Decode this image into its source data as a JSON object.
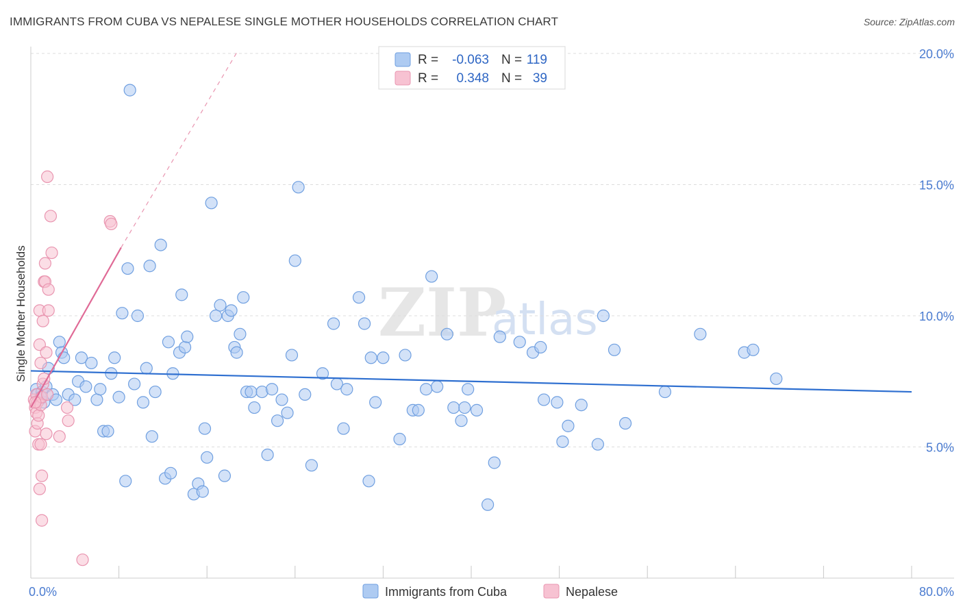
{
  "title": "IMMIGRANTS FROM CUBA VS NEPALESE SINGLE MOTHER HOUSEHOLDS CORRELATION CHART",
  "source": "Source: ZipAtlas.com",
  "watermark": {
    "zip": "ZIP",
    "atlas": "atlas"
  },
  "colors": {
    "cuba_fill": "#aecbf2",
    "cuba_stroke": "#6f9fe0",
    "cuba_line": "#2e6fd0",
    "nep_fill": "#f7c2d2",
    "nep_stroke": "#e995b0",
    "nep_line": "#e06a96",
    "grid": "#dddddd",
    "axis_text": "#4a7bd0"
  },
  "stats": {
    "r_label": "R =",
    "n_label": "N =",
    "cuba": {
      "r": "-0.063",
      "n": "119"
    },
    "nep": {
      "r": "0.348",
      "n": "39"
    }
  },
  "chart_data": {
    "type": "scatter",
    "title": "IMMIGRANTS FROM CUBA VS NEPALESE SINGLE MOTHER HOUSEHOLDS CORRELATION CHART",
    "xlabel": "",
    "ylabel": "Single Mother Households",
    "xlim": [
      0,
      80
    ],
    "ylim": [
      0,
      20
    ],
    "x_tick_labels": [
      "0.0%",
      "80.0%"
    ],
    "y_ticks": [
      5,
      10,
      15,
      20
    ],
    "y_tick_labels": [
      "5.0%",
      "10.0%",
      "15.0%",
      "20.0%"
    ],
    "legend": [
      "Immigrants from Cuba",
      "Nepalese"
    ],
    "series": [
      {
        "name": "Immigrants from Cuba",
        "trend": {
          "x0": 0,
          "y0": 7.9,
          "x1": 80,
          "y1": 7.1
        },
        "points": [
          [
            0.5,
            7.2
          ],
          [
            0.6,
            7.0
          ],
          [
            0.8,
            6.8
          ],
          [
            1.0,
            7.1
          ],
          [
            1.2,
            6.7
          ],
          [
            1.4,
            7.3
          ],
          [
            0.9,
            6.9
          ],
          [
            1.6,
            8.0
          ],
          [
            2.0,
            7.0
          ],
          [
            2.3,
            6.8
          ],
          [
            2.6,
            9.0
          ],
          [
            2.8,
            8.6
          ],
          [
            3.0,
            8.4
          ],
          [
            3.4,
            7.0
          ],
          [
            4.0,
            6.8
          ],
          [
            4.3,
            7.5
          ],
          [
            4.6,
            8.4
          ],
          [
            5.0,
            7.3
          ],
          [
            5.5,
            8.2
          ],
          [
            6.0,
            6.8
          ],
          [
            6.3,
            7.2
          ],
          [
            6.6,
            5.6
          ],
          [
            7.0,
            5.6
          ],
          [
            7.3,
            7.8
          ],
          [
            7.6,
            8.4
          ],
          [
            8.0,
            6.9
          ],
          [
            8.3,
            10.1
          ],
          [
            8.6,
            3.7
          ],
          [
            8.8,
            11.8
          ],
          [
            9.0,
            18.6
          ],
          [
            9.4,
            7.4
          ],
          [
            9.7,
            10.0
          ],
          [
            10.2,
            6.7
          ],
          [
            10.5,
            8.0
          ],
          [
            10.8,
            11.9
          ],
          [
            11.0,
            5.4
          ],
          [
            11.3,
            7.1
          ],
          [
            11.8,
            12.7
          ],
          [
            12.2,
            3.8
          ],
          [
            12.5,
            9.0
          ],
          [
            12.7,
            4.0
          ],
          [
            12.9,
            7.8
          ],
          [
            13.5,
            8.6
          ],
          [
            13.7,
            10.8
          ],
          [
            14.0,
            8.8
          ],
          [
            14.2,
            9.2
          ],
          [
            14.8,
            3.2
          ],
          [
            15.2,
            3.6
          ],
          [
            15.6,
            3.3
          ],
          [
            15.8,
            5.7
          ],
          [
            16.0,
            4.6
          ],
          [
            16.4,
            14.3
          ],
          [
            16.8,
            10.0
          ],
          [
            17.2,
            10.4
          ],
          [
            17.6,
            3.9
          ],
          [
            17.9,
            10.0
          ],
          [
            18.2,
            10.2
          ],
          [
            18.5,
            8.8
          ],
          [
            18.7,
            8.6
          ],
          [
            19.0,
            9.3
          ],
          [
            19.3,
            10.7
          ],
          [
            19.6,
            7.1
          ],
          [
            20.0,
            7.1
          ],
          [
            20.3,
            6.5
          ],
          [
            21.0,
            7.1
          ],
          [
            21.5,
            4.7
          ],
          [
            21.9,
            7.2
          ],
          [
            22.4,
            6.0
          ],
          [
            22.8,
            6.8
          ],
          [
            23.3,
            6.3
          ],
          [
            23.7,
            8.5
          ],
          [
            24.0,
            12.1
          ],
          [
            24.3,
            14.9
          ],
          [
            24.9,
            7.0
          ],
          [
            25.5,
            4.3
          ],
          [
            26.5,
            7.8
          ],
          [
            27.5,
            9.7
          ],
          [
            27.8,
            7.4
          ],
          [
            28.4,
            5.7
          ],
          [
            28.7,
            7.2
          ],
          [
            29.8,
            10.7
          ],
          [
            30.3,
            9.7
          ],
          [
            30.7,
            3.7
          ],
          [
            30.9,
            8.4
          ],
          [
            31.3,
            6.7
          ],
          [
            32.0,
            8.4
          ],
          [
            33.5,
            5.3
          ],
          [
            34.0,
            8.5
          ],
          [
            34.7,
            6.4
          ],
          [
            35.2,
            6.4
          ],
          [
            35.9,
            7.2
          ],
          [
            36.4,
            11.5
          ],
          [
            36.9,
            7.3
          ],
          [
            37.8,
            9.3
          ],
          [
            38.4,
            6.5
          ],
          [
            39.1,
            6.0
          ],
          [
            39.4,
            6.5
          ],
          [
            39.7,
            7.2
          ],
          [
            40.5,
            6.4
          ],
          [
            41.5,
            2.8
          ],
          [
            42.1,
            4.4
          ],
          [
            42.6,
            9.2
          ],
          [
            44.4,
            9.0
          ],
          [
            45.6,
            8.6
          ],
          [
            46.3,
            8.8
          ],
          [
            46.6,
            6.8
          ],
          [
            47.8,
            6.7
          ],
          [
            48.3,
            5.2
          ],
          [
            48.8,
            5.8
          ],
          [
            50.0,
            6.6
          ],
          [
            51.5,
            5.1
          ],
          [
            52.0,
            10.0
          ],
          [
            53.0,
            8.7
          ],
          [
            54.0,
            5.9
          ],
          [
            57.6,
            7.1
          ],
          [
            60.8,
            9.3
          ],
          [
            64.8,
            8.6
          ],
          [
            65.6,
            8.7
          ],
          [
            67.7,
            7.6
          ]
        ]
      },
      {
        "name": "Nepalese",
        "trend": {
          "x0": 0,
          "y0": 6.5,
          "x1": 8.2,
          "y1": 12.6
        },
        "trend_ext": {
          "x0": 8.2,
          "y0": 12.6,
          "x1": 18.8,
          "y1": 20.1
        },
        "points": [
          [
            0.3,
            6.8
          ],
          [
            0.4,
            6.5
          ],
          [
            0.4,
            5.6
          ],
          [
            0.5,
            6.3
          ],
          [
            0.5,
            7.0
          ],
          [
            0.6,
            5.9
          ],
          [
            0.6,
            6.7
          ],
          [
            0.7,
            5.1
          ],
          [
            0.7,
            6.2
          ],
          [
            0.8,
            10.2
          ],
          [
            0.8,
            8.9
          ],
          [
            0.8,
            3.4
          ],
          [
            0.9,
            6.6
          ],
          [
            0.9,
            5.1
          ],
          [
            0.9,
            8.2
          ],
          [
            1.0,
            3.9
          ],
          [
            1.0,
            2.2
          ],
          [
            1.0,
            6.9
          ],
          [
            1.1,
            9.8
          ],
          [
            1.1,
            7.4
          ],
          [
            1.2,
            11.3
          ],
          [
            1.2,
            7.6
          ],
          [
            1.3,
            11.3
          ],
          [
            1.3,
            12.0
          ],
          [
            1.4,
            8.6
          ],
          [
            1.4,
            5.5
          ],
          [
            1.5,
            15.3
          ],
          [
            1.5,
            7.0
          ],
          [
            1.6,
            11.0
          ],
          [
            1.6,
            10.2
          ],
          [
            1.8,
            13.8
          ],
          [
            1.9,
            12.4
          ],
          [
            2.6,
            5.4
          ],
          [
            3.3,
            6.5
          ],
          [
            3.4,
            6.0
          ],
          [
            4.7,
            0.7
          ],
          [
            7.2,
            13.6
          ],
          [
            7.3,
            13.5
          ],
          [
            0.4,
            6.7
          ]
        ]
      }
    ]
  }
}
